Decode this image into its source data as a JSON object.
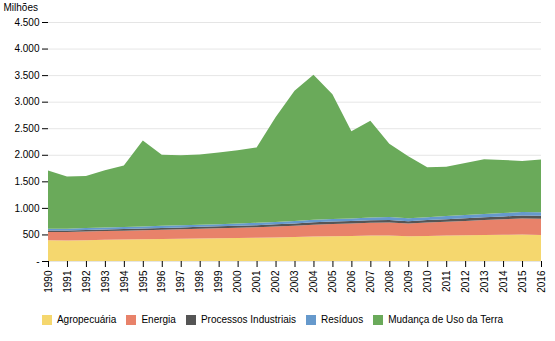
{
  "chart_data": {
    "type": "area",
    "stacked": true,
    "x": [
      1990,
      1991,
      1992,
      1993,
      1994,
      1995,
      1996,
      1997,
      1998,
      1999,
      2000,
      2001,
      2002,
      2003,
      2004,
      2005,
      2006,
      2007,
      2008,
      2009,
      2010,
      2011,
      2012,
      2013,
      2014,
      2015,
      2016
    ],
    "series": [
      {
        "name": "Agropecuária",
        "color": "#F5D76E",
        "values": [
          390,
          388,
          392,
          398,
          403,
          408,
          413,
          418,
          423,
          428,
          433,
          438,
          443,
          452,
          462,
          468,
          472,
          478,
          478,
          468,
          472,
          478,
          483,
          488,
          493,
          498,
          488
        ]
      },
      {
        "name": "Energia",
        "color": "#E8826A",
        "values": [
          155,
          158,
          162,
          165,
          168,
          172,
          176,
          180,
          184,
          188,
          192,
          198,
          206,
          213,
          222,
          228,
          232,
          242,
          248,
          238,
          252,
          262,
          272,
          282,
          292,
          302,
          308
        ]
      },
      {
        "name": "Processos Industriais",
        "color": "#555555",
        "values": [
          28,
          29,
          30,
          31,
          32,
          33,
          34,
          35,
          36,
          36,
          38,
          39,
          41,
          43,
          45,
          46,
          47,
          48,
          48,
          43,
          46,
          48,
          51,
          53,
          55,
          56,
          56
        ]
      },
      {
        "name": "Resíduos",
        "color": "#6699CC",
        "values": [
          33,
          34,
          35,
          36,
          37,
          38,
          39,
          40,
          41,
          42,
          43,
          44,
          45,
          46,
          48,
          49,
          50,
          52,
          54,
          55,
          56,
          58,
          60,
          62,
          64,
          66,
          68
        ]
      },
      {
        "name": "Mudança de Uso da Terra",
        "color": "#6AAA5A",
        "values": [
          1100,
          980,
          980,
          1080,
          1160,
          1620,
          1340,
          1320,
          1320,
          1350,
          1380,
          1420,
          1970,
          2450,
          2730,
          2350,
          1640,
          1820,
          1380,
          1170,
          940,
          930,
          980,
          1030,
          1000,
          960,
          990
        ]
      }
    ],
    "ylabel": "Milhões",
    "xlim": [
      1990,
      2016
    ],
    "xticks": [
      1990,
      1991,
      1992,
      1993,
      1994,
      1995,
      1996,
      1997,
      1998,
      1999,
      2000,
      2001,
      2002,
      2003,
      2004,
      2005,
      2006,
      2007,
      2008,
      2009,
      2010,
      2011,
      2012,
      2013,
      2014,
      2015,
      2016
    ],
    "ylim": [
      0,
      4500
    ],
    "yticks": [
      {
        "value": 0,
        "label": "-"
      },
      500,
      {
        "value": 1000,
        "label": "1.000"
      },
      {
        "value": 1500,
        "label": "1.500"
      },
      {
        "value": 2000,
        "label": "2.000"
      },
      {
        "value": 2500,
        "label": "2.500"
      },
      {
        "value": 3000,
        "label": "3.000"
      },
      {
        "value": 3500,
        "label": "3.500"
      },
      {
        "value": 4000,
        "label": "4.000"
      },
      {
        "value": 4500,
        "label": "4.500"
      }
    ],
    "grid": true,
    "legend": "bottom"
  }
}
